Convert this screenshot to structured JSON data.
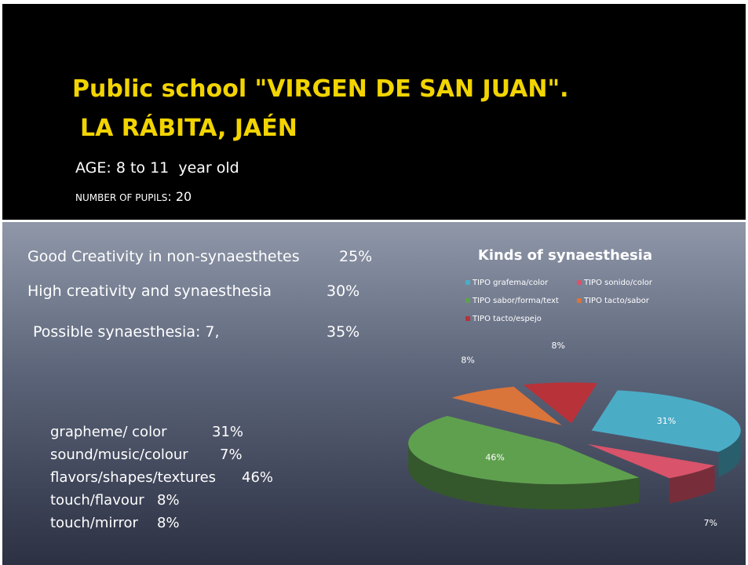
{
  "header": {
    "title_line1": "Public school \"VIRGEN DE SAN JUAN\".",
    "title_line2": "LA RÁBITA, JAÉN",
    "age": "AGE: 8 to 11  year old",
    "pupils_label": "NUMBER OF PUPILS",
    "pupils_value": ": 20"
  },
  "stats": [
    {
      "label": "Good Creativity in non-synaesthetes",
      "value": "25%"
    },
    {
      "label": "High creativity and synaesthesia",
      "value": "30%"
    },
    {
      "label": "Possible synaesthesia: 7,",
      "value": "35%"
    }
  ],
  "kinds": [
    {
      "label": "grapheme/ color",
      "value": "31%"
    },
    {
      "label": "sound/music/colour",
      "value": "7%"
    },
    {
      "label": "flavors/shapes/textures",
      "value": "46%"
    },
    {
      "label": "touch/flavour",
      "value": "8%"
    },
    {
      "label": "touch/mirror",
      "value": "8%"
    }
  ],
  "chart_data": {
    "type": "pie",
    "title": "Kinds of synaesthesia",
    "categories": [
      "TIPO grafema/color",
      "TIPO sonido/color",
      "TIPO sabor/forma/text",
      "TIPO tacto/sabor",
      "TIPO tacto/espejo"
    ],
    "values": [
      31,
      7,
      46,
      8,
      8
    ],
    "value_labels": [
      "31%",
      "7%",
      "46%",
      "8%",
      "8%"
    ],
    "colors": [
      "#4bacc6",
      "#d9536a",
      "#5fa04e",
      "#d9743a",
      "#b8323a"
    ],
    "legend": "top"
  }
}
